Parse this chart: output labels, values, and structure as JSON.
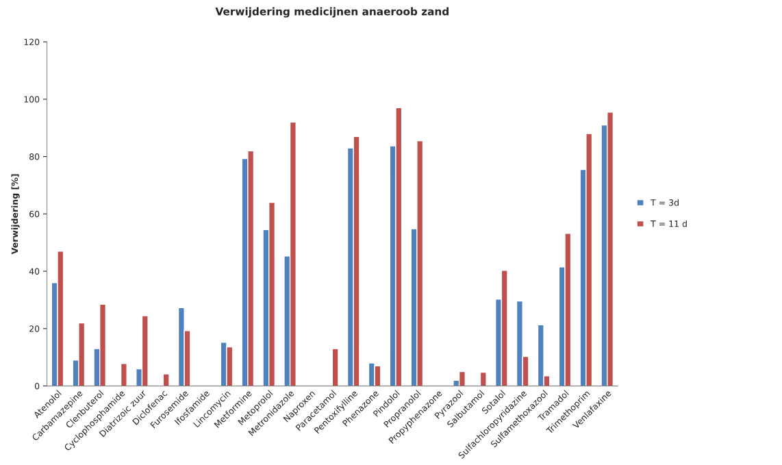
{
  "chart_data": {
    "type": "bar",
    "title": "Verwijdering medicijnen anaeroob zand",
    "ylabel": "Verwijdering [%]",
    "categories": [
      "Atenolol",
      "Carbamazepine",
      "Clenbuterol",
      "Cyclophosphamide",
      "Diatrizoic zuur",
      "Diclofenac",
      "Furosemide",
      "Ifosfamide",
      "Lincomycin",
      "Metformine",
      "Metoprolol",
      "Metronidazole",
      "Naproxen",
      "Paracetamol",
      "Pentoxifylline",
      "Phenazone",
      "Pindolol",
      "Propranolol",
      "Propyphenazone",
      "Pyrazool",
      "Salbutamol",
      "Sotalol",
      "Sulfachloropyridazine",
      "Sulfamethoxazool",
      "Tramadol",
      "Trimethoprim",
      "Venlafaxine"
    ],
    "series": [
      {
        "name": "T = 3d",
        "color": "#4f81bd",
        "values": [
          36,
          9,
          13,
          null,
          6,
          null,
          27.3,
          null,
          15.2,
          79.3,
          54.5,
          45.3,
          null,
          null,
          83,
          8,
          83.7,
          54.8,
          null,
          2,
          null,
          30.3,
          29.6,
          21.3,
          41.5,
          75.5,
          91
        ]
      },
      {
        "name": "T = 11 d",
        "color": "#c0504d",
        "values": [
          47,
          22,
          28.5,
          7.8,
          24.5,
          4.2,
          19.3,
          null,
          13.6,
          82,
          64,
          92,
          null,
          13,
          87,
          7,
          97,
          85.5,
          null,
          5,
          4.8,
          40.3,
          10.3,
          3.5,
          53.2,
          88,
          95.5
        ]
      }
    ],
    "ylim": [
      0,
      120
    ],
    "yticks": [
      0,
      20,
      40,
      60,
      80,
      100,
      120
    ],
    "legend": "right",
    "grid": false
  }
}
